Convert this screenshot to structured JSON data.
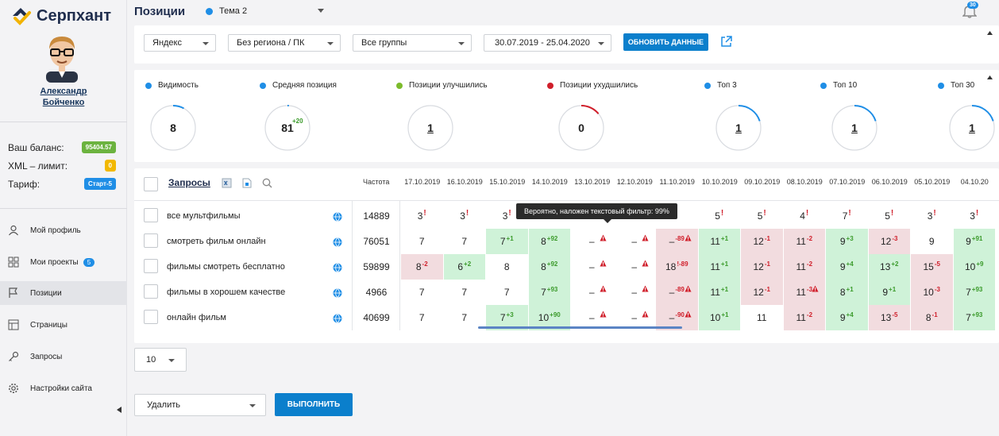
{
  "app": {
    "name": "Серпхант"
  },
  "user": {
    "first_name": "Александр",
    "last_name": "Бойченко"
  },
  "account": {
    "balance_label": "Ваш баланс:",
    "balance_value": "95404.57",
    "xml_label": "XML – лимит:",
    "xml_value": "0",
    "tariff_label": "Тариф:",
    "tariff_value": "Старт-5"
  },
  "nav": [
    {
      "label": "Мой профиль",
      "icon": "user-icon"
    },
    {
      "label": "Мои проекты",
      "icon": "grid-icon",
      "badge": "5"
    },
    {
      "label": "Позиции",
      "icon": "flag-icon",
      "active": true
    },
    {
      "label": "Страницы",
      "icon": "layout-icon"
    },
    {
      "label": "Запросы",
      "icon": "key-icon"
    },
    {
      "label": "Настройки сайта",
      "icon": "gear-icon"
    }
  ],
  "header": {
    "title": "Позиции",
    "theme": "Тема 2",
    "notifications": "30"
  },
  "filters": {
    "engine": "Яндекс",
    "region": "Без региона / ПК",
    "group": "Все группы",
    "dates": "30.07.2019 - 25.04.2020",
    "refresh_label": "ОБНОВИТЬ ДАННЫЕ"
  },
  "stats": [
    {
      "label": "Видимость",
      "value": "8",
      "color": "#1f8ee6",
      "fraction": 0.08
    },
    {
      "label": "Средняя позиция",
      "value": "81",
      "delta": "+20",
      "color": "#1f8ee6",
      "fraction": 0.01
    },
    {
      "label": "Позиции улучшились",
      "value": "1",
      "color": "#7cbb2c",
      "fraction": 0.0,
      "link": true
    },
    {
      "label": "Позиции ухудшились",
      "value": "0",
      "color": "#d01f2b",
      "fraction": 0.14
    },
    {
      "label": "Топ 3",
      "value": "1",
      "color": "#1f8ee6",
      "fraction": 0.2,
      "link": true
    },
    {
      "label": "Топ 10",
      "value": "1",
      "color": "#1f8ee6",
      "fraction": 0.2,
      "link": true
    },
    {
      "label": "Топ 30",
      "value": "1",
      "color": "#1f8ee6",
      "fraction": 0.2,
      "link": true
    }
  ],
  "table": {
    "queries_label": "Запросы",
    "freq_label": "Частота",
    "dates": [
      "17.10.2019",
      "16.10.2019",
      "15.10.2019",
      "14.10.2019",
      "13.10.2019",
      "12.10.2019",
      "11.10.2019",
      "10.10.2019",
      "09.10.2019",
      "08.10.2019",
      "07.10.2019",
      "06.10.2019",
      "05.10.2019",
      "04.10.20"
    ],
    "tooltip": "Вероятно, наложен текстовый фильтр: 99%",
    "rows": [
      {
        "query": "все мультфильмы",
        "freq": "14889",
        "cells": [
          {
            "v": "3",
            "x": "!"
          },
          {
            "v": "3",
            "x": "!"
          },
          {
            "v": "3",
            "x": "!"
          },
          {
            "v": ""
          },
          {
            "v": ""
          },
          {
            "v": ""
          },
          {
            "v": ""
          },
          {
            "v": "5",
            "x": "!"
          },
          {
            "v": "5",
            "x": "!"
          },
          {
            "v": "4",
            "x": "!"
          },
          {
            "v": "7",
            "x": "!"
          },
          {
            "v": "5",
            "x": "!"
          },
          {
            "v": "3",
            "x": "!"
          },
          {
            "v": "3",
            "x": "!"
          }
        ]
      },
      {
        "query": "смотреть фильм онлайн",
        "freq": "76051",
        "cells": [
          {
            "v": "7"
          },
          {
            "v": "7"
          },
          {
            "v": "7",
            "d": "+1",
            "bg": "g"
          },
          {
            "v": "8",
            "d": "+92",
            "bg": "g"
          },
          {
            "v": "–",
            "warn": true
          },
          {
            "v": "–",
            "warn": true
          },
          {
            "v": "–",
            "d": "-89",
            "bg": "r",
            "warn": true
          },
          {
            "v": "11",
            "d": "+1",
            "bg": "g"
          },
          {
            "v": "12",
            "d": "-1",
            "bg": "r"
          },
          {
            "v": "11",
            "d": "-2",
            "bg": "r"
          },
          {
            "v": "9",
            "d": "+3",
            "bg": "g"
          },
          {
            "v": "12",
            "d": "-3",
            "bg": "r"
          },
          {
            "v": "9",
            "bg": "w"
          },
          {
            "v": "9",
            "d": "+91",
            "bg": "g"
          }
        ]
      },
      {
        "query": "фильмы смотреть бесплатно",
        "freq": "59899",
        "cells": [
          {
            "v": "8",
            "d": "-2",
            "bg": "r"
          },
          {
            "v": "6",
            "d": "+2",
            "bg": "g"
          },
          {
            "v": "8",
            "bg": "w"
          },
          {
            "v": "8",
            "d": "+92",
            "bg": "g"
          },
          {
            "v": "–",
            "warn": true
          },
          {
            "v": "–",
            "warn": true
          },
          {
            "v": "18",
            "d": "!-89",
            "bg": "r"
          },
          {
            "v": "11",
            "d": "+1",
            "bg": "g"
          },
          {
            "v": "12",
            "d": "-1",
            "bg": "r"
          },
          {
            "v": "11",
            "d": "-2",
            "bg": "r"
          },
          {
            "v": "9",
            "d": "+4",
            "bg": "g"
          },
          {
            "v": "13",
            "d": "+2",
            "bg": "g"
          },
          {
            "v": "15",
            "d": "-5",
            "bg": "r"
          },
          {
            "v": "10",
            "d": "+9",
            "bg": "g"
          }
        ]
      },
      {
        "query": "фильмы в хорошем качестве",
        "freq": "4966",
        "cells": [
          {
            "v": "7"
          },
          {
            "v": "7"
          },
          {
            "v": "7",
            "bg": "w"
          },
          {
            "v": "7",
            "d": "+93",
            "bg": "g"
          },
          {
            "v": "–",
            "warn": true
          },
          {
            "v": "–",
            "warn": true
          },
          {
            "v": "–",
            "d": "-89",
            "bg": "r",
            "warn": true
          },
          {
            "v": "11",
            "d": "+1",
            "bg": "g"
          },
          {
            "v": "12",
            "d": "-1",
            "bg": "r"
          },
          {
            "v": "11",
            "d": "-3",
            "bg": "r",
            "warn": true
          },
          {
            "v": "8",
            "d": "+1",
            "bg": "g"
          },
          {
            "v": "9",
            "d": "+1",
            "bg": "g"
          },
          {
            "v": "10",
            "d": "-3",
            "bg": "r"
          },
          {
            "v": "7",
            "d": "+93",
            "bg": "g"
          }
        ]
      },
      {
        "query": "онлайн фильм",
        "freq": "40699",
        "cells": [
          {
            "v": "7"
          },
          {
            "v": "7"
          },
          {
            "v": "7",
            "d": "+3",
            "bg": "g"
          },
          {
            "v": "10",
            "d": "+90",
            "bg": "g"
          },
          {
            "v": "–",
            "warn": true
          },
          {
            "v": "–",
            "warn": true
          },
          {
            "v": "–",
            "d": "-90",
            "bg": "r",
            "warn": true
          },
          {
            "v": "10",
            "d": "+1",
            "bg": "g"
          },
          {
            "v": "11",
            "bg": "w"
          },
          {
            "v": "11",
            "d": "-2",
            "bg": "r"
          },
          {
            "v": "9",
            "d": "+4",
            "bg": "g"
          },
          {
            "v": "13",
            "d": "-5",
            "bg": "r"
          },
          {
            "v": "8",
            "d": "-1",
            "bg": "r"
          },
          {
            "v": "7",
            "d": "+93",
            "bg": "g"
          }
        ]
      }
    ]
  },
  "pagination": {
    "per_page": "10"
  },
  "bulk": {
    "action": "Удалить",
    "execute_label": "ВЫПОЛНИТЬ"
  }
}
